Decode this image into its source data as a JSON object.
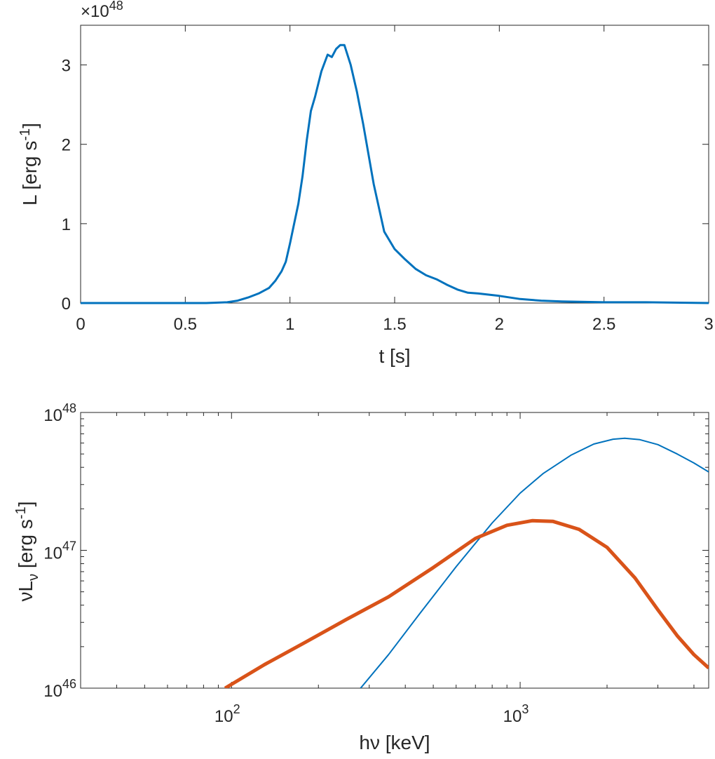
{
  "chart_data": [
    {
      "type": "line",
      "title": "",
      "xlabel": "t [s]",
      "ylabel": "L [erg s",
      "ylabel_sup": "-1",
      "ylabel_end": "]",
      "exponent_label": "×10",
      "exponent_sup": "48",
      "xlim": [
        0,
        3
      ],
      "ylim": [
        0,
        3.5
      ],
      "xticks": [
        0,
        0.5,
        1,
        1.5,
        2,
        2.5,
        3
      ],
      "xtick_labels": [
        "0",
        "0.5",
        "1",
        "1.5",
        "2",
        "2.5",
        "3"
      ],
      "yticks": [
        0,
        1,
        2,
        3
      ],
      "ytick_labels": [
        "0",
        "1",
        "2",
        "3"
      ],
      "grid": false,
      "series": [
        {
          "color": "#0072BD",
          "x": [
            0,
            0.6,
            0.7,
            0.75,
            0.8,
            0.85,
            0.9,
            0.93,
            0.96,
            0.98,
            1.0,
            1.02,
            1.04,
            1.06,
            1.08,
            1.1,
            1.12,
            1.15,
            1.18,
            1.2,
            1.22,
            1.24,
            1.26,
            1.29,
            1.32,
            1.35,
            1.4,
            1.45,
            1.5,
            1.55,
            1.6,
            1.65,
            1.7,
            1.75,
            1.8,
            1.85,
            1.9,
            2.0,
            2.1,
            2.2,
            2.3,
            2.5,
            2.7,
            3.0
          ],
          "y": [
            0,
            0.0,
            0.01,
            0.03,
            0.07,
            0.12,
            0.19,
            0.28,
            0.4,
            0.52,
            0.75,
            1.0,
            1.25,
            1.6,
            2.05,
            2.42,
            2.6,
            2.92,
            3.13,
            3.1,
            3.2,
            3.25,
            3.25,
            3.0,
            2.66,
            2.25,
            1.5,
            0.9,
            0.68,
            0.55,
            0.43,
            0.35,
            0.3,
            0.23,
            0.17,
            0.13,
            0.12,
            0.09,
            0.05,
            0.03,
            0.02,
            0.01,
            0.01,
            0.0
          ]
        }
      ]
    },
    {
      "type": "line",
      "title": "",
      "xlabel": "hν [keV]",
      "ylabel": "νL",
      "ylabel_sub": "ν",
      "ylabel_end": " [erg s",
      "ylabel_sup": "-1",
      "ylabel_close": "]",
      "xscale": "log",
      "yscale": "log",
      "xlim": [
        30,
        4500
      ],
      "ylim": [
        1e+46,
        1e+48
      ],
      "xticks": [
        100,
        1000
      ],
      "xtick_labels": [
        {
          "base": "10",
          "exp": "2"
        },
        {
          "base": "10",
          "exp": "3"
        }
      ],
      "yticks": [
        1e+46,
        1e+47,
        1e+48
      ],
      "ytick_labels": [
        {
          "base": "10",
          "exp": "46"
        },
        {
          "base": "10",
          "exp": "47"
        },
        {
          "base": "10",
          "exp": "48"
        }
      ],
      "grid": false,
      "series": [
        {
          "color": "#0072BD",
          "x": [
            280,
            350,
            450,
            600,
            800,
            1000,
            1200,
            1500,
            1800,
            2100,
            2300,
            2600,
            3000,
            3500,
            4000,
            4500
          ],
          "y": [
            1e+46,
            1.75e+46,
            3.5e+46,
            7.6e+46,
            1.58e+47,
            2.6e+47,
            3.6e+47,
            4.9e+47,
            5.9e+47,
            6.4e+47,
            6.5e+47,
            6.35e+47,
            5.85e+47,
            5e+47,
            4.3e+47,
            3.7e+47
          ]
        },
        {
          "color": "#D95319",
          "x": [
            95,
            130,
            180,
            250,
            350,
            500,
            700,
            900,
            1100,
            1300,
            1600,
            2000,
            2500,
            3000,
            3500,
            4000,
            4500
          ],
          "y": [
            1e+46,
            1.48e+46,
            2.15e+46,
            3.15e+46,
            4.6e+46,
            7.5e+46,
            1.22e+47,
            1.52e+47,
            1.64e+47,
            1.62e+47,
            1.42e+47,
            1.05e+47,
            6.3e+46,
            3.7e+46,
            2.4e+46,
            1.75e+46,
            1.4e+46
          ]
        }
      ]
    }
  ]
}
